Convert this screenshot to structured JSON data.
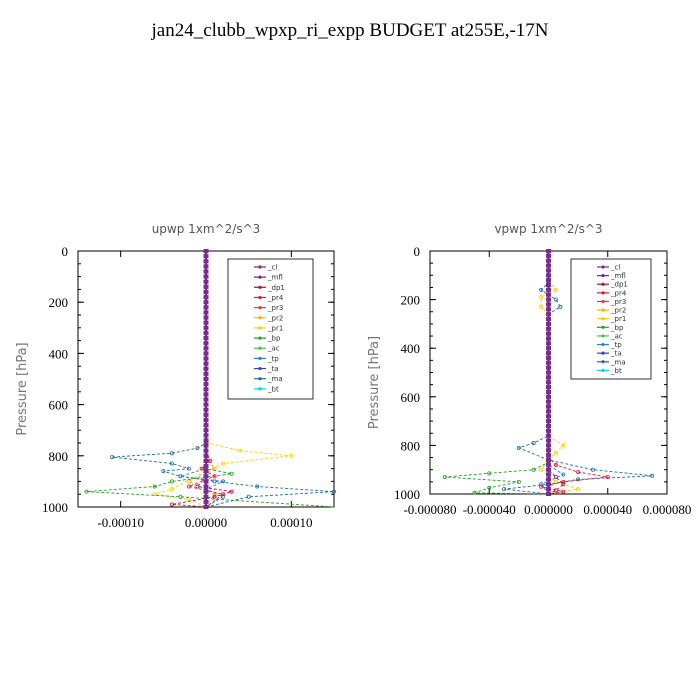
{
  "title": "jan24_clubb_wpxp_ri_expp  BUDGET at255E,-17N",
  "colors": {
    "_cl": "#7a2c8c",
    "_mfl": "#6a2a9a",
    "_dp1": "#b0103a",
    "_pr4": "#e2183a",
    "_pr3": "#f03a3a",
    "_pr2": "#f4b400",
    "_pr1": "#f5d000",
    "_bp": "#22a022",
    "_ac": "#44c444",
    "_tp": "#2a7fe0",
    "_ta": "#3a3ad8",
    "_ma": "#1e6fa0",
    "_bt": "#00d8e0"
  },
  "chart_data": [
    {
      "type": "line",
      "title": "upwp   1xm^2/s^3",
      "ylabel": "Pressure [hPa]",
      "ylim": [
        1000,
        0
      ],
      "xlim": [
        -0.00015,
        0.00015
      ],
      "xticks": [
        "-0.00010",
        "0.00000",
        "0.00010"
      ],
      "yticks": [
        "0",
        "200",
        "400",
        "600",
        "800",
        "1000"
      ],
      "legend": [
        "_cl",
        "_mfl",
        "_dp1",
        "_pr4",
        "_pr3",
        "_pr2",
        "_pr1",
        "_bp",
        "_ac",
        "_tp",
        "_ta",
        "_ma",
        "_bt"
      ],
      "legend_position": "top-right",
      "series": [
        {
          "name": "_pr1",
          "points": [
            [
              0,
              0
            ],
            [
              0,
              700
            ],
            [
              2e-06,
              750
            ],
            [
              4e-05,
              780
            ],
            [
              0.0001,
              800
            ],
            [
              2e-05,
              830
            ],
            [
              0,
              860
            ],
            [
              -4e-05,
              930
            ],
            [
              -6e-05,
              950
            ],
            [
              -2e-05,
              970
            ],
            [
              0,
              1000
            ]
          ]
        },
        {
          "name": "_pr2",
          "points": [
            [
              0,
              0
            ],
            [
              0,
              800
            ],
            [
              1e-05,
              850
            ],
            [
              -2e-05,
              900
            ],
            [
              1e-05,
              950
            ],
            [
              0,
              1000
            ]
          ]
        },
        {
          "name": "_ma",
          "points": [
            [
              0,
              0
            ],
            [
              0,
              750
            ],
            [
              -1e-05,
              770
            ],
            [
              -4e-05,
              790
            ],
            [
              -0.00011,
              805
            ],
            [
              -4e-05,
              830
            ],
            [
              -2e-05,
              850
            ],
            [
              -5e-05,
              860
            ],
            [
              -3e-05,
              880
            ],
            [
              1e-05,
              900
            ],
            [
              6e-05,
              920
            ],
            [
              0.00015,
              940
            ],
            [
              5e-05,
              960
            ],
            [
              0,
              1000
            ]
          ]
        },
        {
          "name": "_tp",
          "points": [
            [
              0,
              0
            ],
            [
              0,
              850
            ],
            [
              -3e-05,
              880
            ],
            [
              2e-05,
              900
            ],
            [
              0,
              930
            ],
            [
              2e-05,
              960
            ],
            [
              0,
              1000
            ]
          ]
        },
        {
          "name": "_bp",
          "points": [
            [
              0,
              0
            ],
            [
              0,
              850
            ],
            [
              3e-05,
              870
            ],
            [
              -4e-05,
              900
            ],
            [
              -6e-05,
              920
            ],
            [
              -0.00014,
              940
            ],
            [
              -3e-05,
              960
            ],
            [
              0.00015,
              1000
            ]
          ]
        },
        {
          "name": "_dp1",
          "points": [
            [
              0,
              0
            ],
            [
              0,
              880
            ],
            [
              -1e-05,
              920
            ],
            [
              3e-05,
              940
            ],
            [
              1e-05,
              960
            ],
            [
              -4e-05,
              990
            ],
            [
              0,
              1000
            ]
          ]
        },
        {
          "name": "_pr4",
          "points": [
            [
              0,
              0
            ],
            [
              0,
              780
            ],
            [
              5e-06,
              820
            ],
            [
              -5e-06,
              850
            ],
            [
              1e-05,
              880
            ],
            [
              -2e-05,
              920
            ],
            [
              2e-05,
              950
            ],
            [
              0,
              1000
            ]
          ]
        },
        {
          "name": "_cl",
          "points": [
            [
              0,
              0
            ],
            [
              0,
              1000
            ]
          ]
        },
        {
          "name": "_mfl",
          "points": [
            [
              0,
              0
            ],
            [
              0,
              1000
            ]
          ]
        }
      ]
    },
    {
      "type": "line",
      "title": "vpwp   1xm^2/s^3",
      "ylabel": "Pressure [hPa]",
      "ylim": [
        1000,
        0
      ],
      "xlim": [
        -8e-05,
        8e-05
      ],
      "xticks": [
        "-0.000080",
        "-0.000040",
        "0.000000",
        "0.000040",
        "0.000080"
      ],
      "yticks": [
        "0",
        "200",
        "400",
        "600",
        "800",
        "1000"
      ],
      "legend": [
        "_cl",
        "_mfl",
        "_dp1",
        "_pr4",
        "_pr3",
        "_pr2",
        "_pr1",
        "_bp",
        "_ac",
        "_tp",
        "_ta",
        "_ma",
        "_bt"
      ],
      "legend_position": "top-right",
      "series": [
        {
          "name": "_pr1",
          "points": [
            [
              0,
              0
            ],
            [
              0,
              120
            ],
            [
              5e-06,
              160
            ],
            [
              -5e-06,
              190
            ],
            [
              -5e-06,
              230
            ],
            [
              0,
              260
            ],
            [
              0,
              760
            ],
            [
              1e-05,
              800
            ],
            [
              5e-06,
              830
            ],
            [
              0,
              860
            ],
            [
              -5e-06,
              900
            ],
            [
              5e-06,
              950
            ],
            [
              2e-05,
              980
            ],
            [
              0,
              1000
            ]
          ]
        },
        {
          "name": "_ma",
          "points": [
            [
              0,
              0
            ],
            [
              0,
              130
            ],
            [
              -5e-06,
              160
            ],
            [
              5e-06,
              200
            ],
            [
              8e-06,
              230
            ],
            [
              0,
              260
            ],
            [
              0,
              760
            ],
            [
              -1e-05,
              790
            ],
            [
              -2e-05,
              810
            ],
            [
              0,
              860
            ],
            [
              3e-05,
              900
            ],
            [
              7e-05,
              925
            ],
            [
              2e-05,
              940
            ],
            [
              0,
              960
            ],
            [
              -3e-05,
              980
            ],
            [
              0,
              1000
            ]
          ]
        },
        {
          "name": "_bp",
          "points": [
            [
              0,
              0
            ],
            [
              0,
              870
            ],
            [
              -1e-05,
              900
            ],
            [
              -4e-05,
              915
            ],
            [
              -7e-05,
              930
            ],
            [
              -2e-05,
              950
            ],
            [
              -4e-05,
              975
            ],
            [
              -5e-05,
              995
            ],
            [
              0,
              1000
            ]
          ]
        },
        {
          "name": "_pr4",
          "points": [
            [
              0,
              0
            ],
            [
              0,
              850
            ],
            [
              5e-06,
              880
            ],
            [
              2e-05,
              910
            ],
            [
              4e-05,
              930
            ],
            [
              1e-05,
              950
            ],
            [
              -5e-06,
              970
            ],
            [
              1e-05,
              990
            ],
            [
              0,
              1000
            ]
          ]
        },
        {
          "name": "_dp1",
          "points": [
            [
              0,
              0
            ],
            [
              0,
              900
            ],
            [
              5e-06,
              930
            ],
            [
              1e-05,
              960
            ],
            [
              5e-06,
              985
            ],
            [
              0,
              1000
            ]
          ]
        },
        {
          "name": "_tp",
          "points": [
            [
              0,
              0
            ],
            [
              0,
              880
            ],
            [
              1e-05,
              920
            ],
            [
              -5e-06,
              960
            ],
            [
              0,
              1000
            ]
          ]
        },
        {
          "name": "_cl",
          "points": [
            [
              0,
              0
            ],
            [
              0,
              1000
            ]
          ]
        },
        {
          "name": "_mfl",
          "points": [
            [
              0,
              0
            ],
            [
              0,
              1000
            ]
          ]
        }
      ]
    }
  ]
}
